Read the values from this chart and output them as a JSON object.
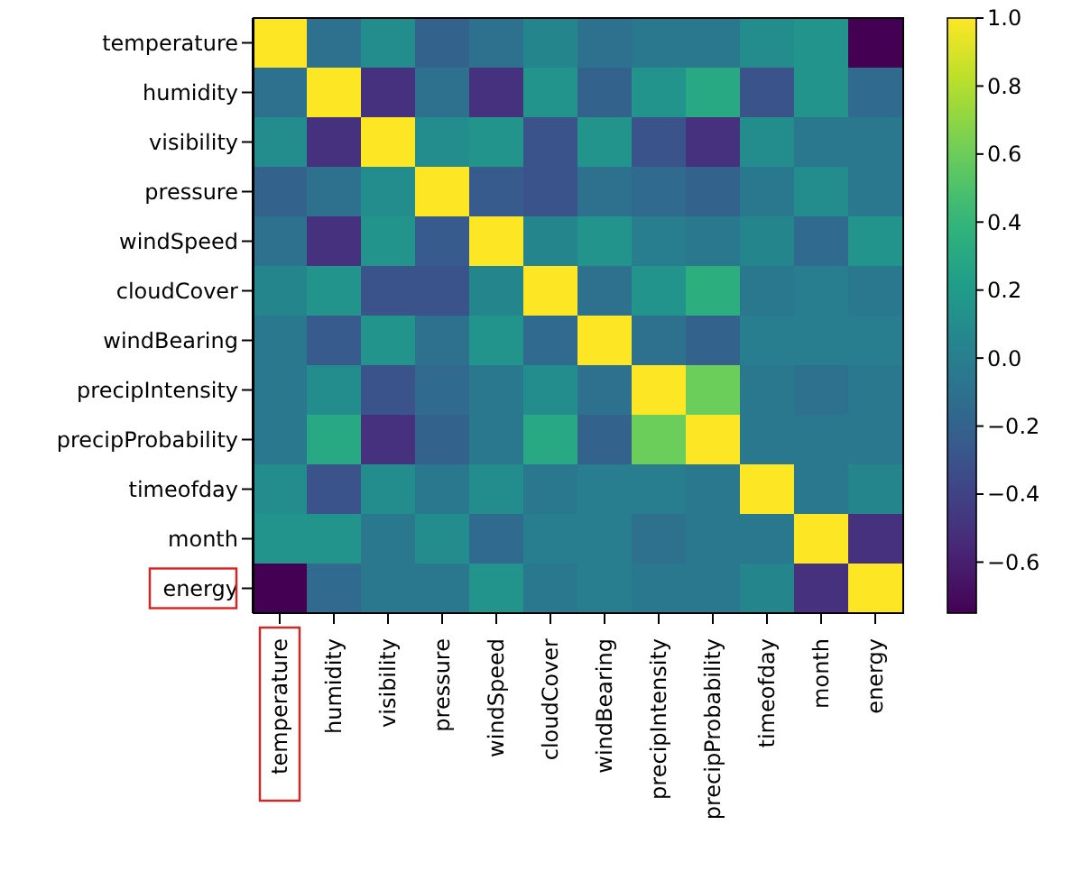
{
  "chart_data": {
    "type": "heatmap",
    "categories": [
      "temperature",
      "humidity",
      "visibility",
      "pressure",
      "windSpeed",
      "cloudCover",
      "windBearing",
      "precipIntensity",
      "precipProbability",
      "timeofday",
      "month",
      "energy"
    ],
    "y_categories": [
      "temperature",
      "humidity",
      "visibility",
      "pressure",
      "windSpeed",
      "cloudCover",
      "windBearing",
      "precipIntensity",
      "precipProbability",
      "timeofday",
      "month",
      "energy"
    ],
    "cells": [
      [
        1,
        -0.1,
        0.1,
        -0.2,
        -0.1,
        0.05,
        -0.1,
        -0.05,
        -0.05,
        0.1,
        0.15,
        -0.75
      ],
      [
        -0.1,
        1,
        -0.5,
        -0.1,
        -0.5,
        0.15,
        -0.2,
        0.15,
        0.3,
        -0.3,
        0.15,
        -0.15
      ],
      [
        0.1,
        -0.5,
        1,
        0.1,
        0.15,
        -0.3,
        0.15,
        -0.3,
        -0.5,
        0.1,
        -0.05,
        -0.05
      ],
      [
        -0.2,
        -0.1,
        0.1,
        1,
        -0.25,
        -0.3,
        -0.1,
        -0.15,
        -0.2,
        -0.05,
        0.1,
        -0.05
      ],
      [
        -0.1,
        -0.5,
        0.15,
        -0.25,
        1,
        0.05,
        0.15,
        0,
        -0.05,
        0.05,
        -0.15,
        0.15
      ],
      [
        0.05,
        0.15,
        -0.3,
        -0.3,
        0.05,
        1,
        -0.1,
        0.15,
        0.35,
        -0.05,
        0,
        -0.05
      ],
      [
        -0.05,
        -0.25,
        0.15,
        -0.1,
        0.15,
        -0.15,
        1,
        -0.1,
        -0.2,
        0,
        0,
        0
      ],
      [
        -0.05,
        0.1,
        -0.3,
        -0.15,
        -0.05,
        0.1,
        -0.1,
        1,
        0.6,
        -0.05,
        -0.1,
        -0.05
      ],
      [
        -0.05,
        0.3,
        -0.5,
        -0.2,
        -0.05,
        0.3,
        -0.2,
        0.6,
        1,
        -0.05,
        -0.05,
        -0.05
      ],
      [
        0.1,
        -0.3,
        0.1,
        -0.05,
        0.1,
        -0.05,
        0,
        0,
        -0.05,
        1,
        -0.05,
        0.05
      ],
      [
        0.15,
        0.15,
        -0.05,
        0.1,
        -0.15,
        0,
        0,
        -0.1,
        -0.05,
        -0.05,
        1,
        -0.5
      ],
      [
        -0.75,
        -0.15,
        -0.05,
        -0.05,
        0.15,
        -0.05,
        0,
        -0.05,
        -0.05,
        0.05,
        -0.5,
        1
      ]
    ],
    "clim": [
      -0.75,
      1.0
    ],
    "cticks": [
      {
        "value": -0.6,
        "label": "−0.6"
      },
      {
        "value": -0.4,
        "label": "−0.4"
      },
      {
        "value": -0.2,
        "label": "−0.2"
      },
      {
        "value": 0,
        "label": "0.0"
      },
      {
        "value": 0.2,
        "label": "0.2"
      },
      {
        "value": 0.4,
        "label": "0.4"
      },
      {
        "value": 0.6,
        "label": "0.6"
      },
      {
        "value": 0.8,
        "label": "0.8"
      },
      {
        "value": 1,
        "label": "1.0"
      }
    ]
  }
}
